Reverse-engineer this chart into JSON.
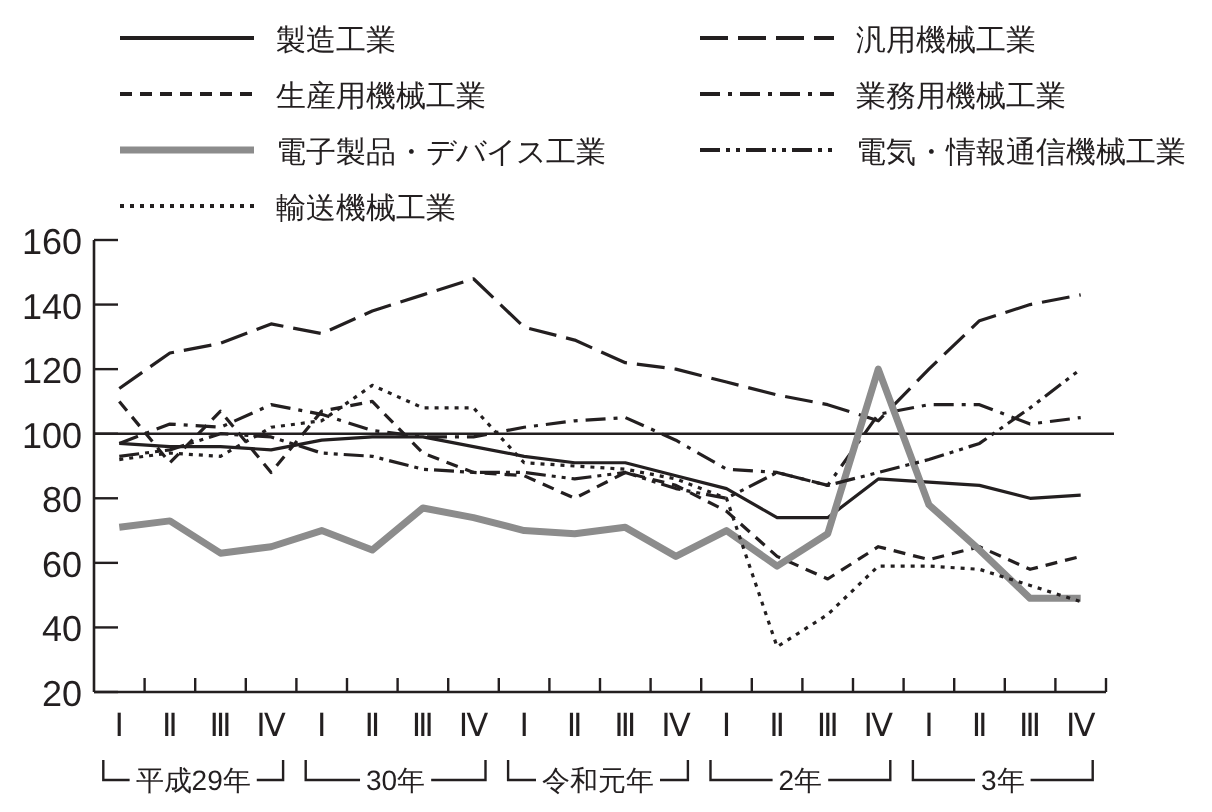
{
  "chart_data": {
    "type": "line",
    "categories": [
      "Ⅰ",
      "Ⅱ",
      "Ⅲ",
      "Ⅳ",
      "Ⅰ",
      "Ⅱ",
      "Ⅲ",
      "Ⅳ",
      "Ⅰ",
      "Ⅱ",
      "Ⅲ",
      "Ⅳ",
      "Ⅰ",
      "Ⅱ",
      "Ⅲ",
      "Ⅳ",
      "Ⅰ",
      "Ⅱ",
      "Ⅲ",
      "Ⅳ"
    ],
    "annotations": [
      "平成29年",
      "30年",
      "令和元年",
      "2年",
      "3年"
    ],
    "ylim": [
      20,
      160
    ],
    "yticks": [
      20,
      40,
      60,
      80,
      100,
      120,
      140,
      160
    ],
    "grid": false,
    "legend": "top",
    "marker": "none",
    "ref_lines": [
      {
        "axis": "y",
        "value": 100,
        "color": "#231f20"
      }
    ],
    "series": [
      {
        "name": "製造工業",
        "color": "#231f20",
        "line_style": "solid",
        "values": [
          97,
          96,
          96,
          95,
          98,
          99,
          99,
          96,
          93,
          91,
          91,
          87,
          83,
          74,
          74,
          86,
          85,
          84,
          80,
          81
        ]
      },
      {
        "name": "汎用機械工業",
        "color": "#231f20",
        "line_style": "longdash",
        "values": [
          114,
          125,
          128,
          134,
          131,
          138,
          143,
          148,
          133,
          129,
          122,
          120,
          116,
          112,
          109,
          104,
          120,
          135,
          140,
          143
        ]
      },
      {
        "name": "生産用機械工業",
        "color": "#231f20",
        "line_style": "dashed",
        "values": [
          110,
          91,
          107,
          88,
          107,
          110,
          94,
          88,
          87,
          80,
          88,
          84,
          76,
          62,
          55,
          65,
          61,
          65,
          58,
          62
        ]
      },
      {
        "name": "業務用機械工業",
        "color": "#231f20",
        "line_style": "dashdot",
        "values": [
          97,
          103,
          102,
          109,
          106,
          101,
          99,
          99,
          102,
          104,
          105,
          98,
          89,
          88,
          84,
          106,
          109,
          109,
          103,
          105
        ]
      },
      {
        "name": "電子製品・デバイス工業",
        "color": "#8c8c8c",
        "line_style": "solid",
        "values": [
          71,
          73,
          63,
          65,
          70,
          64,
          77,
          74,
          70,
          69,
          71,
          62,
          70,
          59,
          69,
          120,
          78,
          64,
          49,
          49
        ]
      },
      {
        "name": "電気・情報通信機械工業",
        "color": "#231f20",
        "line_style": "dashdotdot",
        "values": [
          93,
          95,
          100,
          99,
          94,
          93,
          89,
          88,
          88,
          86,
          88,
          83,
          80,
          88,
          84,
          88,
          92,
          97,
          108,
          120
        ]
      },
      {
        "name": "輸送機械工業",
        "color": "#231f20",
        "line_style": "dotted",
        "values": [
          92,
          94,
          93,
          102,
          104,
          115,
          108,
          108,
          91,
          90,
          89,
          86,
          80,
          34,
          44,
          59,
          59,
          58,
          53,
          48
        ]
      }
    ]
  }
}
